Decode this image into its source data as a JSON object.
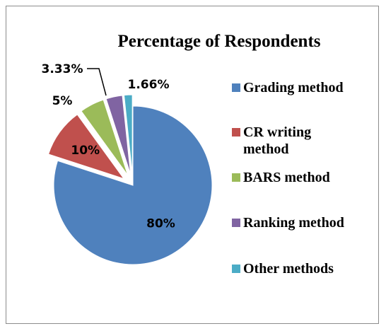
{
  "chart_data": {
    "type": "pie",
    "title": "Percentage of Respondents",
    "categories": [
      "Grading method",
      "CR writing method",
      "BARS method",
      "Ranking method",
      "Other methods"
    ],
    "values": [
      80,
      10,
      5,
      3.33,
      1.66
    ],
    "value_labels": [
      "80%",
      "10%",
      "5%",
      "3.33%",
      "1.66%"
    ],
    "colors": [
      "#4f81bd",
      "#c0504d",
      "#9bbb59",
      "#8064a2",
      "#4bacc6"
    ],
    "legend": "right"
  }
}
